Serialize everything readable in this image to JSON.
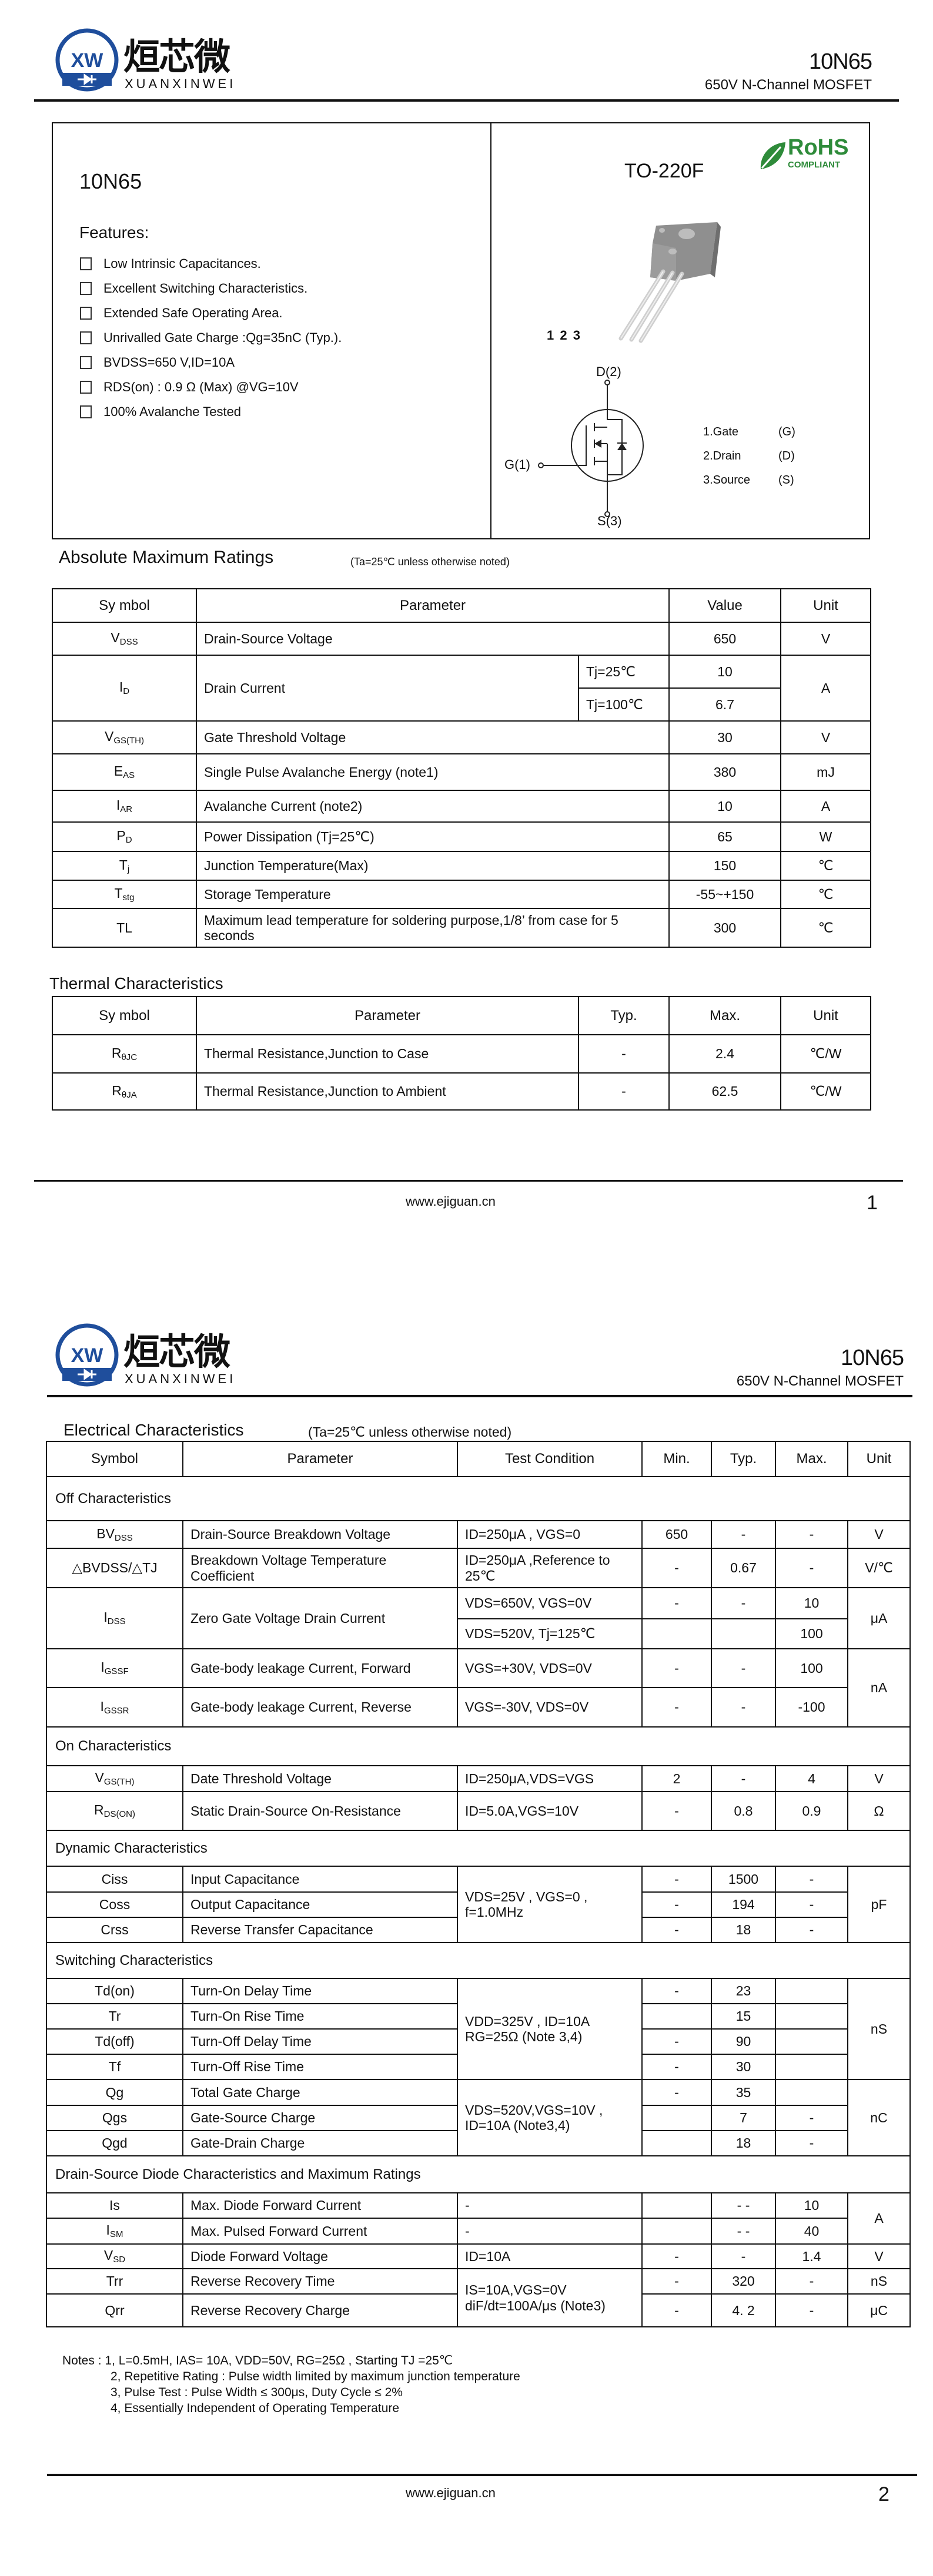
{
  "header": {
    "logo_mark": "XW",
    "logo_cn": "烜芯微",
    "logo_en": "XUANXINWEI",
    "part": "10N65",
    "subtitle": "650V N-Channel MOSFET"
  },
  "overview": {
    "part": "10N65",
    "features_title": "Features:",
    "features": [
      "Low Intrinsic Capacitances.",
      "Excellent Switching Characteristics.",
      "Extended Safe Operating Area.",
      "Unrivalled Gate Charge :Qg=35nC (Typ.).",
      "BVDSS=650 V,ID=10A",
      "RDS(on) : 0.9 Ω (Max) @VG=10V",
      "100% Avalanche Tested"
    ],
    "package": "TO-220F",
    "rohs": {
      "title": "RoHS",
      "sub": "COMPLIANT",
      "color": "#2e8b3a"
    },
    "pin_numbers": "1 2 3",
    "schematic": {
      "drain": "D(2)",
      "gate": "G(1)",
      "source": "S(3)"
    },
    "pins": [
      {
        "name": "1.Gate",
        "code": "(G)"
      },
      {
        "name": "2.Drain",
        "code": "(D)"
      },
      {
        "name": "3.Source",
        "code": "(S)"
      }
    ]
  },
  "abs": {
    "title": "Absolute Maximum Ratings",
    "condition": "(Ta=25℃ unless otherwise noted)",
    "headers": [
      "Sy mbol",
      "Parameter",
      "Value",
      "Unit"
    ],
    "rows": [
      {
        "sym": "V",
        "sub": "DSS",
        "param": "Drain-Source Voltage",
        "value": "650",
        "unit": "V"
      },
      {
        "sym": "I",
        "sub": "D",
        "param": "Drain Current",
        "cond": "Tj=25℃",
        "value": "10",
        "unit": "A"
      },
      {
        "cond": "Tj=100℃",
        "value": "6.7"
      },
      {
        "sym": "V",
        "sub": "GS(TH)",
        "param": "Gate Threshold Voltage",
        "value": "30",
        "unit": "V"
      },
      {
        "sym": "E",
        "sub": "AS",
        "param": "Single Pulse Avalanche Energy (note1)",
        "value": "380",
        "unit": "mJ"
      },
      {
        "sym": "I",
        "sub": "AR",
        "param": "Avalanche Current (note2)",
        "value": "10",
        "unit": "A"
      },
      {
        "sym": "P",
        "sub": "D",
        "param": "Power Dissipation (Tj=25℃)",
        "value": "65",
        "unit": "W"
      },
      {
        "sym": "T",
        "sub": "j",
        "param": "Junction Temperature(Max)",
        "value": "150",
        "unit": "℃"
      },
      {
        "sym": "T",
        "sub": "stg",
        "param": "Storage Temperature",
        "value": "-55~+150",
        "unit": "℃"
      },
      {
        "sym": "TL",
        "param": "Maximum lead temperature for soldering purpose,1/8’ from case for 5 seconds",
        "value": "300",
        "unit": "℃"
      }
    ]
  },
  "thermal": {
    "title": "Thermal Characteristics",
    "headers": [
      "Sy mbol",
      "Parameter",
      "Typ.",
      "Max.",
      "Unit"
    ],
    "rows": [
      {
        "sym": "R",
        "sub": "θJC",
        "param": "Thermal Resistance,Junction to Case",
        "typ": "-",
        "max": "2.4",
        "unit": "℃/W"
      },
      {
        "sym": "R",
        "sub": "θJA",
        "param": "Thermal Resistance,Junction to Ambient",
        "typ": "-",
        "max": "62.5",
        "unit": "℃/W"
      }
    ]
  },
  "elec": {
    "title": "Electrical Characteristics",
    "condition": "(Ta=25℃ unless otherwise noted)",
    "headers": [
      "Symbol",
      "Parameter",
      "Test Condition",
      "Min.",
      "Typ.",
      "Max.",
      "Unit"
    ],
    "sections": [
      "Off Characteristics",
      "On Characteristics",
      "Dynamic Characteristics",
      "Switching Characteristics",
      "Drain-Source  Diode Characteristics and Maximum Ratings"
    ],
    "rows": [
      {
        "sym": "BV",
        "sub": "DSS",
        "param": "Drain-Source Breakdown Voltage",
        "cond": "ID=250μA , VGS=0",
        "min": "650",
        "typ": "-",
        "max": "-",
        "unit": "V"
      },
      {
        "sym": "△BVDSS/△TJ",
        "param": "Breakdown Voltage Temperature Coefficient",
        "cond": "ID=250μA ,Reference to 25℃",
        "min": "-",
        "typ": "0.67",
        "max": "-",
        "unit": "V/℃"
      },
      {
        "sym": "I",
        "sub": "DSS",
        "param": "Zero Gate Voltage Drain Current",
        "cond": "VDS=650V, VGS=0V",
        "min": "-",
        "typ": "-",
        "max": "10",
        "unit": "μA"
      },
      {
        "cond": "VDS=520V, Tj=125℃",
        "min": "",
        "typ": "",
        "max": "100"
      },
      {
        "sym": "I",
        "sub": "GSSF",
        "param": "Gate-body leakage Current, Forward",
        "cond": "VGS=+30V, VDS=0V",
        "min": "-",
        "typ": "-",
        "max": "100",
        "unit": "nA"
      },
      {
        "sym": "I",
        "sub": "GSSR",
        "param": "Gate-body leakage Current, Reverse",
        "cond": "VGS=-30V, VDS=0V",
        "min": "-",
        "typ": "-",
        "max": "-100"
      },
      {
        "sym": "V",
        "sub": "GS(TH)",
        "param": "Date Threshold Voltage",
        "cond": "ID=250μA,VDS=VGS",
        "min": "2",
        "typ": "-",
        "max": "4",
        "unit": "V"
      },
      {
        "sym": "R",
        "sub": "DS(ON)",
        "param": "Static Drain-Source On-Resistance",
        "cond": "ID=5.0A,VGS=10V",
        "min": "-",
        "typ": "0.8",
        "max": "0.9",
        "unit": "Ω"
      },
      {
        "sym": "Ciss",
        "param": "Input Capacitance",
        "cond": "VDS=25V , VGS=0 , f=1.0MHz",
        "min": "-",
        "typ": "1500",
        "max": "-",
        "unit": "pF"
      },
      {
        "sym": "Coss",
        "param": "Output Capacitance",
        "min": "-",
        "typ": "194",
        "max": "-"
      },
      {
        "sym": "Crss",
        "param": "Reverse Transfer Capacitance",
        "min": "-",
        "typ": "18",
        "max": "-"
      },
      {
        "sym": "Td(on)",
        "param": "Turn-On   Delay   Time",
        "cond": "VDD=325V , ID=10A RG=25Ω (Note 3,4)",
        "min": "-",
        "typ": "23",
        "max": "",
        "unit": "nS"
      },
      {
        "sym": "Tr",
        "param": "Turn-On   Rise   Time",
        "min": "",
        "typ": "15",
        "max": ""
      },
      {
        "sym": "Td(off)",
        "param": "Turn-Off  Delay  Time",
        "min": "-",
        "typ": "90",
        "max": ""
      },
      {
        "sym": "Tf",
        "param": "Turn-Off Rise   Time",
        "min": "-",
        "typ": "30",
        "max": ""
      },
      {
        "sym": "Qg",
        "param": "Total Gate Charge",
        "cond": "VDS=520V,VGS=10V , ID=10A (Note3,4)",
        "min": "-",
        "typ": "35",
        "max": "",
        "unit": "nC"
      },
      {
        "sym": "Qgs",
        "param": "Gate-Source Charge",
        "min": "",
        "typ": "7",
        "max": "-"
      },
      {
        "sym": "Qgd",
        "param": "Gate-Drain Charge",
        "min": "",
        "typ": "18",
        "max": "-"
      },
      {
        "sym": "Is",
        "param": "Max. Diode Forward Current",
        "cond": "-",
        "min": "",
        "typ": "- -",
        "max": "10",
        "unit": "A"
      },
      {
        "sym": "I",
        "sub": "SM",
        "param": "Max. Pulsed Forward Current",
        "cond": "-",
        "min": "",
        "typ": "- -",
        "max": "40"
      },
      {
        "sym": "V",
        "sub": "SD",
        "param": "Diode Forward Voltage",
        "cond": "ID=10A",
        "min": "-",
        "typ": "-",
        "max": "1.4",
        "unit": "V"
      },
      {
        "sym": "Trr",
        "param": "Reverse Recovery    Time",
        "cond": "IS=10A,VGS=0V diF/dt=100A/μs (Note3)",
        "min": "-",
        "typ": "320",
        "max": "-",
        "unit": "nS"
      },
      {
        "sym": "Qrr",
        "param": "Reverse Recovery Charge",
        "min": "-",
        "typ": "4. 2",
        "max": "-",
        "unit": "μC"
      }
    ]
  },
  "notes": [
    "Notes : 1, L=0.5mH, IAS= 10A, VDD=50V, RG=25Ω , Starting TJ =25℃",
    "2, Repetitive Rating : Pulse width limited by maximum junction temperature",
    "3, Pulse Test : Pulse Width ≤ 300μs, Duty Cycle ≤ 2%",
    "4, Essentially Independent of Operating Temperature"
  ],
  "footer": {
    "website": "www.ejiguan.cn",
    "pages": [
      "1",
      "2"
    ]
  }
}
